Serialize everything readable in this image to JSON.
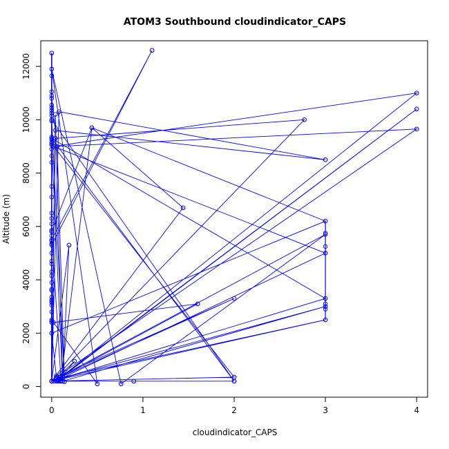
{
  "chart_data": {
    "type": "line",
    "title": "ATOM3 Southbound cloudindicator_CAPS",
    "xlabel": "cloudindicator_CAPS",
    "ylabel": "Altitude (m)",
    "xlim": [
      -0.12,
      4.12
    ],
    "ylim": [
      -400,
      12960
    ],
    "xticks": [
      0,
      1,
      2,
      3,
      4
    ],
    "yticks": [
      0,
      2000,
      4000,
      6000,
      8000,
      10000,
      12000
    ],
    "grid": false,
    "legend": "none",
    "series": [
      {
        "name": "cloudindicator_CAPS",
        "color": "#0000ff",
        "marker": "open-circle",
        "x": [
          0,
          0,
          0,
          0,
          1.1,
          0,
          0,
          0.04,
          3,
          0.08,
          0,
          2.77,
          0.04,
          0,
          0.04,
          0.12,
          0,
          2.0,
          0,
          0.1,
          0,
          0.44,
          3.0,
          0,
          0.05,
          0.12,
          2,
          0.9,
          0,
          0,
          0.19,
          0.12,
          3,
          0,
          0.08,
          4,
          0.07,
          3,
          0.02,
          4,
          0.12,
          0.25,
          0.05,
          3,
          0,
          0.1,
          0.44,
          1.44,
          0,
          3,
          0.76,
          0,
          0.5,
          0.02,
          1.6,
          0.02,
          0.05,
          0.08,
          0.1,
          3,
          0,
          2.0,
          0,
          0.14,
          0.06,
          4,
          0.05,
          2.0,
          0,
          0.07,
          0.12,
          0.06
        ],
        "y": [
          200,
          12500,
          200,
          5500,
          12600,
          5300,
          10800,
          9600,
          8500,
          10300,
          200,
          10000,
          9300,
          200,
          10200,
          200,
          9100,
          350,
          200,
          300,
          5800,
          9700,
          6200,
          2000,
          400,
          200,
          200,
          200,
          200,
          200,
          5300,
          200,
          3000,
          200,
          300,
          10400,
          250,
          5000,
          9000,
          11000,
          400,
          950,
          300,
          2500,
          200,
          200,
          9700,
          6700,
          200,
          5700,
          100,
          11900,
          100,
          2400,
          3100,
          200,
          200,
          200,
          300,
          3300,
          9300,
          200,
          10000,
          180,
          9000,
          9650,
          350,
          3300,
          200,
          200,
          200,
          200
        ]
      }
    ],
    "point_clusters": {
      "x0_altitudes": [
        12500,
        11900,
        11650,
        11050,
        10900,
        10550,
        10450,
        10350,
        10250,
        10150,
        9950,
        9350,
        9250,
        9150,
        9050,
        8900,
        8650,
        8400,
        7500,
        7100,
        6500,
        6300,
        6100,
        5850,
        5650,
        5450,
        5350,
        5000,
        4700,
        4600,
        4300,
        4150,
        3900,
        3650,
        3600,
        3350,
        3250,
        3200,
        3150,
        3050,
        2800,
        2500,
        2450,
        2400,
        2000,
        200
      ],
      "x3_altitudes": [
        8500,
        6200,
        5750,
        5250,
        5000,
        3300,
        3100,
        3000,
        2900,
        2500
      ],
      "scattered_points": [
        {
          "x": 1.1,
          "y": 12600
        },
        {
          "x": 2.77,
          "y": 10000
        },
        {
          "x": 0.44,
          "y": 9700
        },
        {
          "x": 1.44,
          "y": 6700
        },
        {
          "x": 0.19,
          "y": 5300
        },
        {
          "x": 1.6,
          "y": 3100
        },
        {
          "x": 0.25,
          "y": 950
        },
        {
          "x": 2.0,
          "y": 350
        },
        {
          "x": 2.0,
          "y": 200
        },
        {
          "x": 0.9,
          "y": 200
        },
        {
          "x": 0.76,
          "y": 100
        },
        {
          "x": 0.5,
          "y": 100
        },
        {
          "x": 0.1,
          "y": 200
        },
        {
          "x": 0.14,
          "y": 180
        },
        {
          "x": 4,
          "y": 11000
        },
        {
          "x": 4,
          "y": 10400
        },
        {
          "x": 4,
          "y": 9650
        }
      ]
    }
  }
}
